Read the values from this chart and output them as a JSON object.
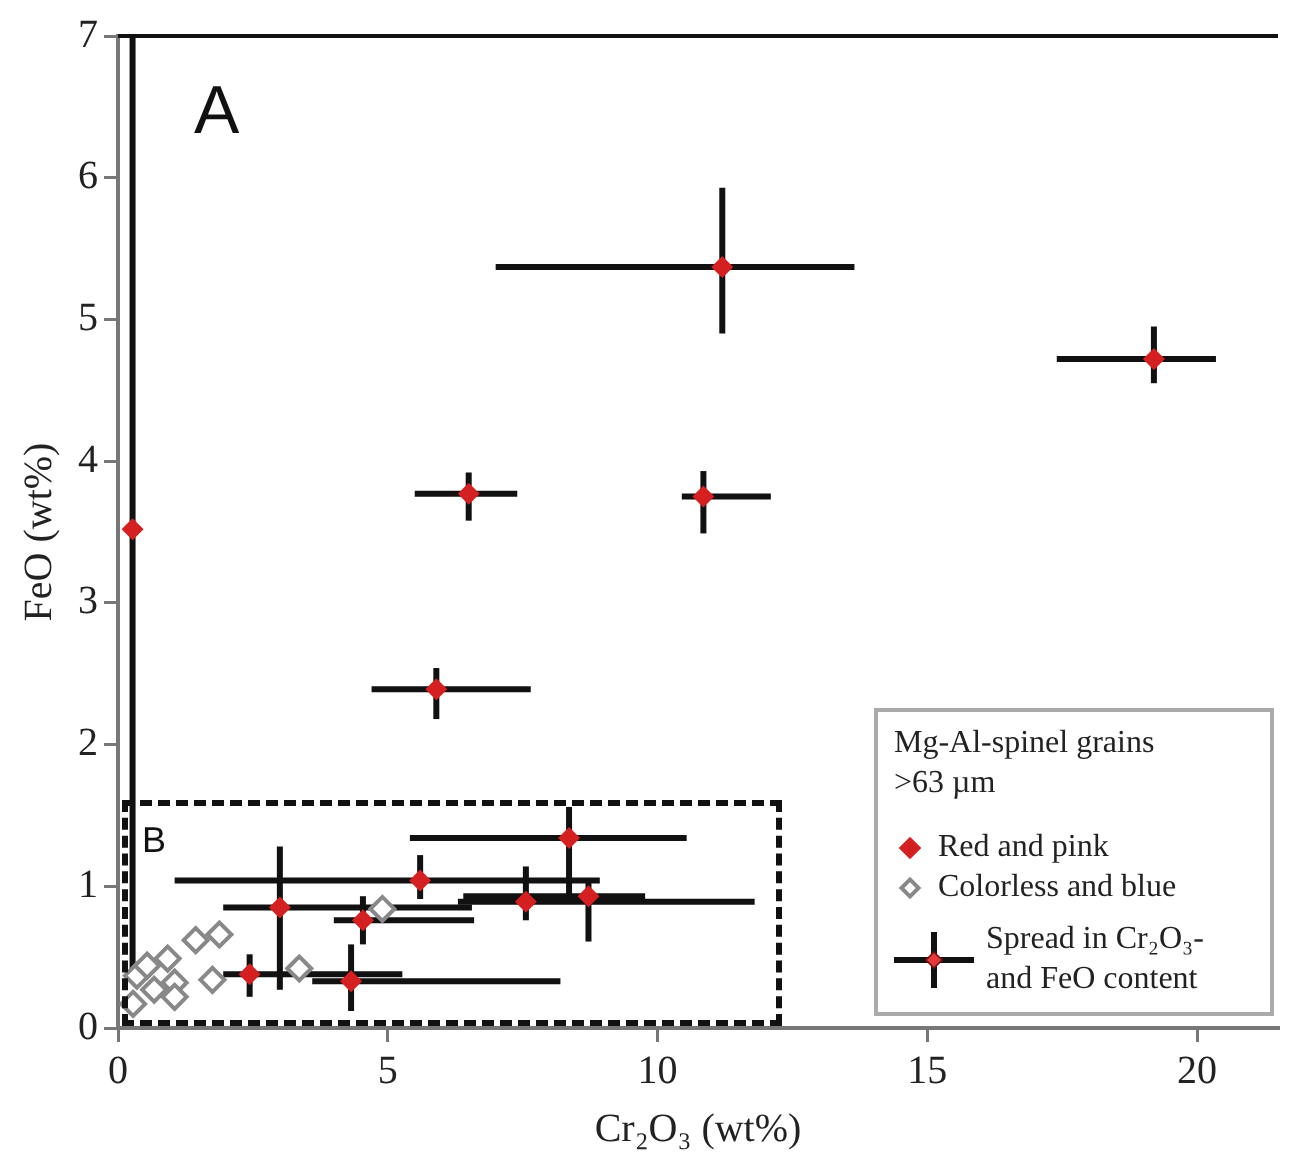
{
  "chart_data": {
    "type": "scatter",
    "xlabel": "Cr₂O₃ (wt%)",
    "ylabel": "FeO (wt%)",
    "legend_title": "Mg-Al-spinel grains >63 µm",
    "legend": "bottom right",
    "marker": "diamond",
    "xlim": [
      0,
      21.5
    ],
    "xticks": [
      0,
      5,
      10,
      15,
      20
    ],
    "ylim": [
      0,
      7
    ],
    "yticks": [
      0,
      1,
      2,
      3,
      4,
      5,
      6,
      7
    ],
    "grid": false,
    "annotations": [
      "A",
      "B",
      "Spread in Cr₂O₃- and FeO content"
    ],
    "series": [
      {
        "name": "Red and pink",
        "color": "#d42020",
        "x": [
          11.2,
          19.2,
          6.5,
          10.85,
          5.9,
          0.27,
          8.36,
          5.6,
          3.0,
          4.54,
          7.56,
          8.72,
          2.44,
          4.32
        ],
        "values": [
          5.37,
          4.72,
          3.77,
          3.75,
          2.39,
          3.52,
          1.34,
          1.04,
          0.85,
          0.76,
          0.89,
          0.93,
          0.38,
          0.33
        ],
        "errors": [
          [
            4.9,
            5.93
          ],
          [
            4.55,
            4.95
          ],
          [
            3.58,
            3.92
          ],
          [
            3.49,
            3.93
          ],
          [
            2.18,
            2.54
          ],
          [
            0.4,
            7
          ],
          [
            0.93,
            1.56
          ],
          [
            0.91,
            1.22
          ],
          [
            0.27,
            1.28
          ],
          [
            0.59,
            0.93
          ],
          [
            0.76,
            1.14
          ],
          [
            0.61,
            1.04
          ],
          [
            0.22,
            0.52
          ],
          [
            0.12,
            0.59
          ]
        ],
        "xerrors": [
          [
            7.0,
            13.65
          ],
          [
            17.4,
            20.35
          ],
          [
            5.5,
            7.4
          ],
          [
            10.45,
            12.1
          ],
          [
            4.7,
            7.65
          ],
          null,
          [
            5.41,
            10.54
          ],
          [
            1.05,
            8.93
          ],
          [
            1.95,
            6.56
          ],
          [
            4.0,
            6.6
          ],
          [
            6.3,
            11.8
          ],
          [
            6.4,
            9.77
          ],
          [
            1.95,
            5.27
          ],
          [
            3.6,
            8.2
          ]
        ]
      },
      {
        "name": "Colorless and blue",
        "color": "#888888",
        "x": [
          0.35,
          0.28,
          0.67,
          0.92,
          1.05,
          1.05,
          1.44,
          1.88,
          1.75,
          3.36,
          4.9,
          0.54
        ],
        "values": [
          0.37,
          0.17,
          0.27,
          0.49,
          0.32,
          0.22,
          0.62,
          0.66,
          0.34,
          0.42,
          0.84,
          0.44
        ]
      }
    ]
  }
}
